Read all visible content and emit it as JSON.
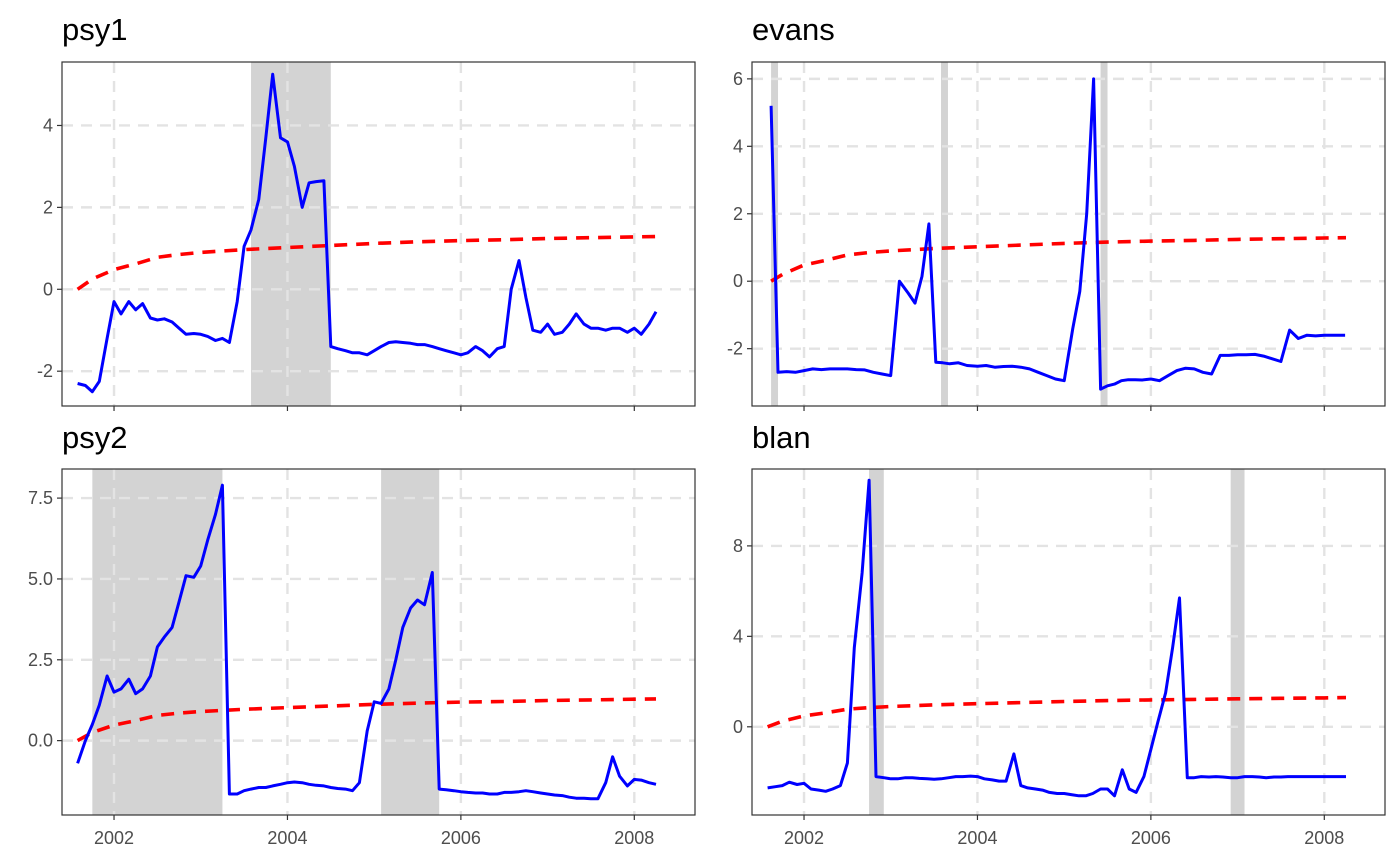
{
  "colors": {
    "grid": "#e3e3e3",
    "shade": "#d3d3d3",
    "series": "#0000ff",
    "critical": "#ff0000",
    "frame": "#333333"
  },
  "chart_data": [
    {
      "type": "line",
      "title": "psy1",
      "xlim": [
        2001.4,
        2008.7
      ],
      "ylim": [
        -2.85,
        5.55
      ],
      "x_ticks": [
        2002,
        2004,
        2006,
        2008
      ],
      "x_tick_labels": [],
      "y_ticks": [
        -2,
        0,
        2,
        4
      ],
      "y_tick_labels": [
        "-2",
        "0",
        "2",
        "4"
      ],
      "grid": true,
      "shaded_periods": [
        [
          2003.58,
          2004.5
        ]
      ],
      "series": [
        {
          "style": "solid",
          "color": "#0000ff",
          "x": [
            2001.58,
            2001.67,
            2001.75,
            2001.83,
            2001.92,
            2002.0,
            2002.08,
            2002.17,
            2002.25,
            2002.33,
            2002.42,
            2002.5,
            2002.58,
            2002.67,
            2002.75,
            2002.83,
            2002.92,
            2003.0,
            2003.08,
            2003.17,
            2003.25,
            2003.33,
            2003.42,
            2003.5,
            2003.58,
            2003.67,
            2003.75,
            2003.83,
            2003.92,
            2004.0,
            2004.08,
            2004.17,
            2004.25,
            2004.33,
            2004.42,
            2004.5,
            2004.58,
            2004.67,
            2004.75,
            2004.83,
            2004.92,
            2005.0,
            2005.08,
            2005.17,
            2005.25,
            2005.33,
            2005.42,
            2005.5,
            2005.58,
            2005.67,
            2005.75,
            2005.83,
            2005.92,
            2006.0,
            2006.08,
            2006.17,
            2006.25,
            2006.33,
            2006.42,
            2006.5,
            2006.58,
            2006.67,
            2006.75,
            2006.83,
            2006.92,
            2007.0,
            2007.08,
            2007.17,
            2007.25,
            2007.33,
            2007.42,
            2007.5,
            2007.58,
            2007.67,
            2007.75,
            2007.83,
            2007.92,
            2008.0,
            2008.08,
            2008.17,
            2008.25
          ],
          "y": [
            -2.3,
            -2.35,
            -2.5,
            -2.25,
            -1.2,
            -0.3,
            -0.6,
            -0.3,
            -0.5,
            -0.35,
            -0.7,
            -0.75,
            -0.72,
            -0.8,
            -0.95,
            -1.1,
            -1.08,
            -1.1,
            -1.15,
            -1.25,
            -1.2,
            -1.3,
            -0.3,
            1.05,
            1.45,
            2.2,
            3.7,
            5.25,
            3.7,
            3.6,
            3.0,
            2.0,
            2.6,
            2.63,
            2.65,
            -1.4,
            -1.45,
            -1.5,
            -1.55,
            -1.55,
            -1.6,
            -1.5,
            -1.4,
            -1.3,
            -1.28,
            -1.3,
            -1.32,
            -1.35,
            -1.35,
            -1.4,
            -1.45,
            -1.5,
            -1.55,
            -1.6,
            -1.55,
            -1.4,
            -1.5,
            -1.65,
            -1.45,
            -1.4,
            0.0,
            0.7,
            -0.2,
            -1.0,
            -1.05,
            -0.85,
            -1.1,
            -1.05,
            -0.85,
            -0.6,
            -0.85,
            -0.95,
            -0.95,
            -1.0,
            -0.95,
            -0.95,
            -1.05,
            -0.95,
            -1.1,
            -0.85,
            -0.55
          ]
        },
        {
          "style": "dashed",
          "color": "#ff0000",
          "x": [
            2001.58,
            2001.75,
            2002.0,
            2002.25,
            2002.5,
            2002.75,
            2003.0,
            2003.5,
            2004.0,
            2004.5,
            2005.0,
            2005.5,
            2006.0,
            2006.5,
            2007.0,
            2007.5,
            2008.0,
            2008.25
          ],
          "y": [
            0.0,
            0.25,
            0.48,
            0.62,
            0.78,
            0.85,
            0.9,
            0.97,
            1.02,
            1.07,
            1.12,
            1.16,
            1.19,
            1.21,
            1.24,
            1.26,
            1.28,
            1.29
          ]
        }
      ]
    },
    {
      "type": "line",
      "title": "evans",
      "xlim": [
        2001.4,
        2008.7
      ],
      "ylim": [
        -3.7,
        6.5
      ],
      "x_ticks": [
        2002,
        2004,
        2006,
        2008
      ],
      "x_tick_labels": [],
      "y_ticks": [
        -2,
        0,
        2,
        4,
        6
      ],
      "y_tick_labels": [
        "-2",
        "0",
        "2",
        "4",
        "6"
      ],
      "grid": true,
      "shaded_periods": [
        [
          2001.62,
          2001.7
        ],
        [
          2003.58,
          2003.66
        ],
        [
          2005.42,
          2005.5
        ]
      ],
      "series": [
        {
          "style": "solid",
          "color": "#0000ff",
          "x": [
            2001.62,
            2001.7,
            2001.8,
            2001.9,
            2002.0,
            2002.1,
            2002.2,
            2002.3,
            2002.4,
            2002.5,
            2002.6,
            2002.7,
            2002.8,
            2002.9,
            2003.0,
            2003.1,
            2003.2,
            2003.28,
            2003.36,
            2003.44,
            2003.52,
            2003.6,
            2003.68,
            2003.78,
            2003.88,
            2004.0,
            2004.1,
            2004.2,
            2004.3,
            2004.4,
            2004.5,
            2004.6,
            2004.7,
            2004.8,
            2004.9,
            2005.0,
            2005.1,
            2005.18,
            2005.26,
            2005.34,
            2005.42,
            2005.5,
            2005.58,
            2005.66,
            2005.74,
            2005.82,
            2005.9,
            2006.0,
            2006.1,
            2006.2,
            2006.3,
            2006.4,
            2006.5,
            2006.6,
            2006.7,
            2006.8,
            2006.9,
            2007.0,
            2007.1,
            2007.2,
            2007.3,
            2007.4,
            2007.5,
            2007.6,
            2007.7,
            2007.8,
            2007.9,
            2008.0,
            2008.08,
            2008.16,
            2008.24
          ],
          "y": [
            5.2,
            -2.7,
            -2.68,
            -2.7,
            -2.65,
            -2.6,
            -2.62,
            -2.6,
            -2.6,
            -2.6,
            -2.62,
            -2.63,
            -2.7,
            -2.75,
            -2.8,
            0.0,
            -0.35,
            -0.65,
            0.15,
            1.7,
            -2.4,
            -2.42,
            -2.45,
            -2.42,
            -2.5,
            -2.52,
            -2.5,
            -2.55,
            -2.53,
            -2.52,
            -2.55,
            -2.6,
            -2.7,
            -2.8,
            -2.9,
            -2.95,
            -1.4,
            -0.3,
            2.0,
            6.0,
            -3.2,
            -3.1,
            -3.05,
            -2.95,
            -2.92,
            -2.92,
            -2.93,
            -2.9,
            -2.95,
            -2.8,
            -2.65,
            -2.58,
            -2.6,
            -2.7,
            -2.75,
            -2.2,
            -2.2,
            -2.18,
            -2.18,
            -2.17,
            -2.22,
            -2.3,
            -2.38,
            -1.45,
            -1.7,
            -1.6,
            -1.62,
            -1.6,
            -1.6,
            -1.6,
            -1.6
          ]
        },
        {
          "style": "dashed",
          "color": "#ff0000",
          "x": [
            2001.62,
            2001.75,
            2002.0,
            2002.25,
            2002.5,
            2002.75,
            2003.0,
            2003.5,
            2004.0,
            2004.5,
            2005.0,
            2005.5,
            2006.0,
            2006.5,
            2007.0,
            2007.5,
            2008.0,
            2008.25
          ],
          "y": [
            0.0,
            0.2,
            0.48,
            0.62,
            0.78,
            0.85,
            0.9,
            0.97,
            1.02,
            1.07,
            1.12,
            1.16,
            1.19,
            1.21,
            1.24,
            1.26,
            1.28,
            1.29
          ]
        }
      ]
    },
    {
      "type": "line",
      "title": "psy2",
      "xlim": [
        2001.4,
        2008.7
      ],
      "ylim": [
        -2.3,
        8.4
      ],
      "x_ticks": [
        2002,
        2004,
        2006,
        2008
      ],
      "x_tick_labels": [
        "2002",
        "2004",
        "2006",
        "2008"
      ],
      "y_ticks": [
        0.0,
        2.5,
        5.0,
        7.5
      ],
      "y_tick_labels": [
        "0.0",
        "2.5",
        "5.0",
        "7.5"
      ],
      "grid": true,
      "shaded_periods": [
        [
          2001.75,
          2003.25
        ],
        [
          2005.08,
          2005.75
        ]
      ],
      "series": [
        {
          "style": "solid",
          "color": "#0000ff",
          "x": [
            2001.58,
            2001.67,
            2001.75,
            2001.83,
            2001.92,
            2002.0,
            2002.08,
            2002.17,
            2002.25,
            2002.33,
            2002.42,
            2002.5,
            2002.58,
            2002.67,
            2002.75,
            2002.83,
            2002.92,
            2003.0,
            2003.08,
            2003.17,
            2003.25,
            2003.33,
            2003.42,
            2003.5,
            2003.58,
            2003.67,
            2003.75,
            2003.83,
            2003.92,
            2004.0,
            2004.08,
            2004.17,
            2004.25,
            2004.33,
            2004.42,
            2004.5,
            2004.58,
            2004.67,
            2004.75,
            2004.83,
            2004.92,
            2005.0,
            2005.08,
            2005.17,
            2005.25,
            2005.33,
            2005.42,
            2005.5,
            2005.58,
            2005.67,
            2005.75,
            2005.83,
            2005.92,
            2006.0,
            2006.08,
            2006.17,
            2006.25,
            2006.33,
            2006.42,
            2006.5,
            2006.58,
            2006.67,
            2006.75,
            2006.83,
            2006.92,
            2007.0,
            2007.08,
            2007.17,
            2007.25,
            2007.33,
            2007.42,
            2007.5,
            2007.58,
            2007.67,
            2007.75,
            2007.83,
            2007.92,
            2008.0,
            2008.08,
            2008.17,
            2008.25
          ],
          "y": [
            -0.7,
            0.0,
            0.5,
            1.1,
            2.0,
            1.5,
            1.6,
            1.9,
            1.45,
            1.6,
            2.0,
            2.9,
            3.2,
            3.5,
            4.3,
            5.1,
            5.05,
            5.4,
            6.2,
            7.0,
            7.9,
            -1.65,
            -1.65,
            -1.55,
            -1.5,
            -1.45,
            -1.45,
            -1.4,
            -1.35,
            -1.3,
            -1.28,
            -1.3,
            -1.35,
            -1.38,
            -1.4,
            -1.45,
            -1.48,
            -1.5,
            -1.55,
            -1.3,
            0.3,
            1.2,
            1.15,
            1.6,
            2.5,
            3.5,
            4.1,
            4.35,
            4.2,
            5.2,
            -1.5,
            -1.52,
            -1.55,
            -1.58,
            -1.6,
            -1.62,
            -1.62,
            -1.65,
            -1.65,
            -1.6,
            -1.6,
            -1.58,
            -1.55,
            -1.58,
            -1.62,
            -1.65,
            -1.68,
            -1.7,
            -1.75,
            -1.78,
            -1.78,
            -1.8,
            -1.8,
            -1.3,
            -0.5,
            -1.1,
            -1.4,
            -1.2,
            -1.22,
            -1.3,
            -1.35
          ]
        },
        {
          "style": "dashed",
          "color": "#ff0000",
          "x": [
            2001.58,
            2001.75,
            2002.0,
            2002.25,
            2002.5,
            2002.75,
            2003.0,
            2003.5,
            2004.0,
            2004.5,
            2005.0,
            2005.5,
            2006.0,
            2006.5,
            2007.0,
            2007.5,
            2008.0,
            2008.25
          ],
          "y": [
            0.0,
            0.25,
            0.48,
            0.62,
            0.78,
            0.85,
            0.9,
            0.97,
            1.02,
            1.07,
            1.12,
            1.16,
            1.19,
            1.21,
            1.24,
            1.26,
            1.28,
            1.29
          ]
        }
      ]
    },
    {
      "type": "line",
      "title": "blan",
      "xlim": [
        2001.4,
        2008.7
      ],
      "ylim": [
        -3.9,
        11.4
      ],
      "x_ticks": [
        2002,
        2004,
        2006,
        2008
      ],
      "x_tick_labels": [
        "2002",
        "2004",
        "2006",
        "2008"
      ],
      "y_ticks": [
        0,
        4,
        8
      ],
      "y_tick_labels": [
        "0",
        "4",
        "8"
      ],
      "grid": true,
      "shaded_periods": [
        [
          2002.75,
          2002.92
        ],
        [
          2006.92,
          2007.08
        ]
      ],
      "series": [
        {
          "style": "solid",
          "color": "#0000ff",
          "x": [
            2001.58,
            2001.67,
            2001.75,
            2001.83,
            2001.92,
            2002.0,
            2002.08,
            2002.17,
            2002.25,
            2002.33,
            2002.42,
            2002.5,
            2002.58,
            2002.67,
            2002.75,
            2002.83,
            2002.92,
            2003.0,
            2003.08,
            2003.17,
            2003.25,
            2003.33,
            2003.42,
            2003.5,
            2003.58,
            2003.67,
            2003.75,
            2003.83,
            2003.92,
            2004.0,
            2004.08,
            2004.17,
            2004.25,
            2004.33,
            2004.42,
            2004.5,
            2004.58,
            2004.67,
            2004.75,
            2004.83,
            2004.92,
            2005.0,
            2005.08,
            2005.17,
            2005.25,
            2005.33,
            2005.42,
            2005.5,
            2005.58,
            2005.67,
            2005.75,
            2005.83,
            2005.92,
            2006.0,
            2006.08,
            2006.17,
            2006.25,
            2006.33,
            2006.42,
            2006.5,
            2006.58,
            2006.67,
            2006.75,
            2006.83,
            2006.92,
            2007.0,
            2007.08,
            2007.17,
            2007.25,
            2007.33,
            2007.42,
            2007.5,
            2007.58,
            2007.67,
            2007.75,
            2007.83,
            2007.92,
            2008.0,
            2008.08,
            2008.17,
            2008.25
          ],
          "y": [
            -2.7,
            -2.65,
            -2.6,
            -2.45,
            -2.55,
            -2.5,
            -2.75,
            -2.8,
            -2.85,
            -2.75,
            -2.6,
            -1.6,
            3.5,
            6.8,
            10.9,
            -2.2,
            -2.25,
            -2.3,
            -2.3,
            -2.25,
            -2.25,
            -2.28,
            -2.3,
            -2.32,
            -2.3,
            -2.25,
            -2.2,
            -2.2,
            -2.18,
            -2.2,
            -2.3,
            -2.35,
            -2.4,
            -2.4,
            -1.2,
            -2.6,
            -2.7,
            -2.75,
            -2.8,
            -2.9,
            -2.95,
            -2.95,
            -3.0,
            -3.05,
            -3.05,
            -2.95,
            -2.75,
            -2.75,
            -3.05,
            -1.9,
            -2.75,
            -2.9,
            -2.2,
            -1.0,
            0.2,
            1.5,
            3.5,
            5.7,
            -2.25,
            -2.25,
            -2.2,
            -2.22,
            -2.2,
            -2.22,
            -2.25,
            -2.25,
            -2.2,
            -2.2,
            -2.22,
            -2.25,
            -2.22,
            -2.22,
            -2.2,
            -2.2,
            -2.2,
            -2.2,
            -2.2,
            -2.2,
            -2.2,
            -2.2,
            -2.2
          ]
        },
        {
          "style": "dashed",
          "color": "#ff0000",
          "x": [
            2001.58,
            2001.75,
            2002.0,
            2002.25,
            2002.5,
            2002.75,
            2003.0,
            2003.5,
            2004.0,
            2004.5,
            2005.0,
            2005.5,
            2006.0,
            2006.5,
            2007.0,
            2007.5,
            2008.0,
            2008.25
          ],
          "y": [
            0.0,
            0.25,
            0.48,
            0.62,
            0.78,
            0.85,
            0.9,
            0.97,
            1.02,
            1.07,
            1.12,
            1.16,
            1.19,
            1.21,
            1.24,
            1.26,
            1.28,
            1.29
          ]
        }
      ]
    }
  ]
}
